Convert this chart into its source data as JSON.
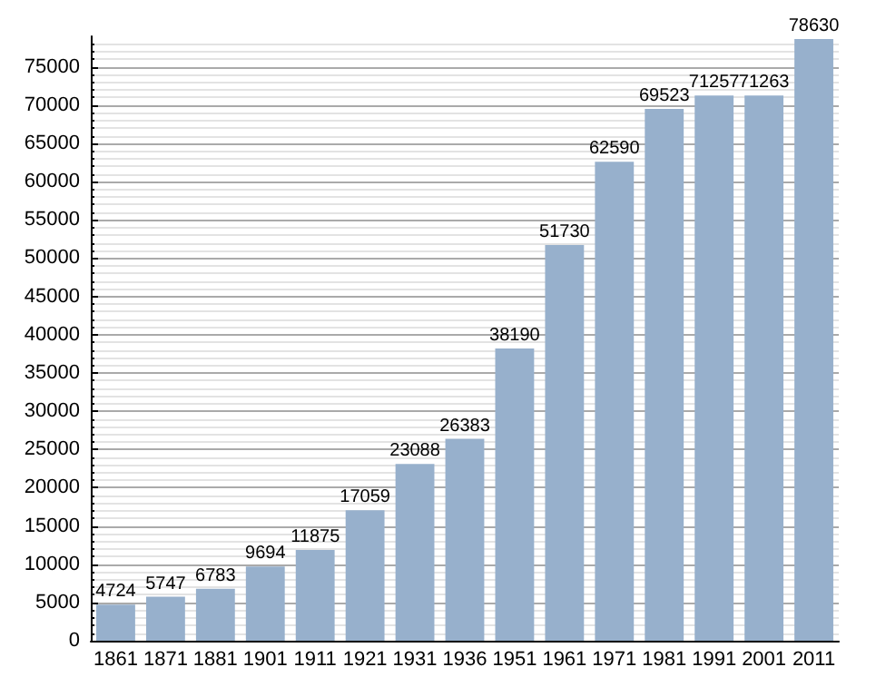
{
  "chart_data": {
    "type": "bar",
    "categories": [
      "1861",
      "1871",
      "1881",
      "1901",
      "1911",
      "1921",
      "1931",
      "1936",
      "1951",
      "1961",
      "1971",
      "1981",
      "1991",
      "2001",
      "2011"
    ],
    "values": [
      4724,
      5747,
      6783,
      9694,
      11875,
      17059,
      23088,
      26383,
      38190,
      51730,
      62590,
      69523,
      71257,
      71263,
      78630
    ],
    "color": "#97b0cc",
    "ylim": [
      0,
      79000
    ],
    "yticks": [
      0,
      5000,
      10000,
      15000,
      20000,
      25000,
      30000,
      35000,
      40000,
      45000,
      50000,
      55000,
      60000,
      65000,
      70000,
      75000
    ],
    "grid": "y",
    "data_labels": true
  }
}
